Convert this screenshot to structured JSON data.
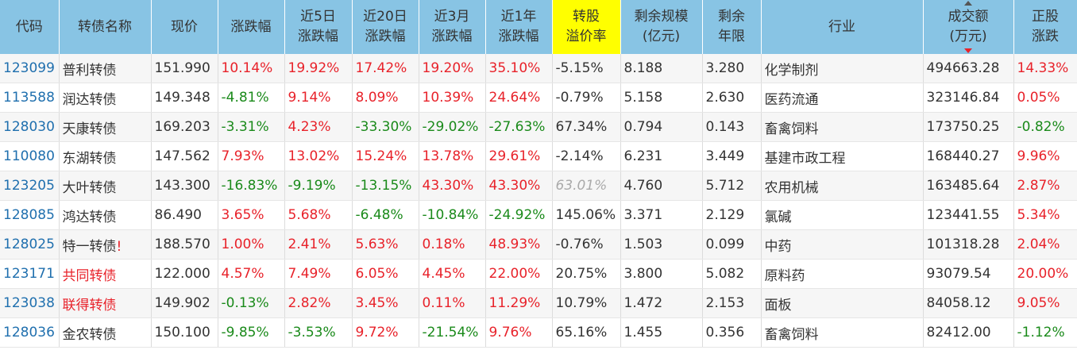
{
  "headers": [
    {
      "l1": "代码"
    },
    {
      "l1": "转债名称"
    },
    {
      "l1": "现价"
    },
    {
      "l1": "涨跌幅"
    },
    {
      "l1": "近5日",
      "l2": "涨跌幅"
    },
    {
      "l1": "近20日",
      "l2": "涨跌幅"
    },
    {
      "l1": "近3月",
      "l2": "涨跌幅"
    },
    {
      "l1": "近1年",
      "l2": "涨跌幅"
    },
    {
      "l1": "转股",
      "l2": "溢价率",
      "highlight": true
    },
    {
      "l1": "剩余规模",
      "l2": "(亿元)"
    },
    {
      "l1": "剩余",
      "l2": "年限"
    },
    {
      "l1": "行业"
    },
    {
      "l1": "成交额",
      "l2": "(万元)",
      "sorted": "desc"
    },
    {
      "l1": "正股",
      "l2": "涨跌"
    }
  ],
  "colors": {
    "header_bg": "#88c4e4",
    "highlight": "#ffff00",
    "up": "#e8222a",
    "down": "#1a8a1a",
    "code": "#1f6fae"
  },
  "rows": [
    {
      "code": "123099",
      "name": "普利转债",
      "price": "151.990",
      "chg": "10.14%",
      "chg5d": "19.92%",
      "chg20d": "17.42%",
      "chg3m": "19.20%",
      "chg1y": "35.10%",
      "premium": "-5.15%",
      "size": "8.188",
      "years": "3.280",
      "industry": "化学制剂",
      "volume": "494663.28",
      "stock_chg": "14.33%"
    },
    {
      "code": "113588",
      "name": "润达转债",
      "price": "149.348",
      "chg": "-4.81%",
      "chg5d": "9.14%",
      "chg20d": "8.09%",
      "chg3m": "10.39%",
      "chg1y": "24.64%",
      "premium": "-0.79%",
      "size": "5.158",
      "years": "2.630",
      "industry": "医药流通",
      "volume": "323146.84",
      "stock_chg": "0.05%"
    },
    {
      "code": "128030",
      "name": "天康转债",
      "price": "169.203",
      "chg": "-3.31%",
      "chg5d": "4.23%",
      "chg20d": "-33.30%",
      "chg3m": "-29.02%",
      "chg1y": "-27.63%",
      "premium": "67.34%",
      "size": "0.794",
      "years": "0.143",
      "industry": "畜禽饲料",
      "volume": "173750.25",
      "stock_chg": "-0.82%"
    },
    {
      "code": "110080",
      "name": "东湖转债",
      "price": "147.562",
      "chg": "7.93%",
      "chg5d": "13.02%",
      "chg20d": "15.24%",
      "chg3m": "13.78%",
      "chg1y": "29.61%",
      "premium": "-2.14%",
      "size": "6.231",
      "years": "3.449",
      "industry": "基建市政工程",
      "volume": "168440.27",
      "stock_chg": "9.96%"
    },
    {
      "code": "123205",
      "name": "大叶转债",
      "price": "143.300",
      "chg": "-16.83%",
      "chg5d": "-9.19%",
      "chg20d": "-13.15%",
      "chg3m": "43.30%",
      "chg1y": "43.30%",
      "premium": "63.01%",
      "premium_style": "gray",
      "size": "4.760",
      "years": "5.712",
      "industry": "农用机械",
      "volume": "163485.64",
      "stock_chg": "2.87%"
    },
    {
      "code": "128085",
      "name": "鸿达转债",
      "price": "86.490",
      "chg": "3.65%",
      "chg5d": "5.68%",
      "chg20d": "-6.48%",
      "chg3m": "-10.84%",
      "chg1y": "-24.92%",
      "premium": "145.06%",
      "size": "3.371",
      "years": "2.129",
      "industry": "氯碱",
      "volume": "123441.55",
      "stock_chg": "5.34%"
    },
    {
      "code": "128025",
      "name": "特一转债",
      "mark": "!",
      "price": "188.570",
      "chg": "1.00%",
      "chg5d": "2.41%",
      "chg20d": "5.63%",
      "chg3m": "0.18%",
      "chg1y": "48.93%",
      "premium": "-0.76%",
      "size": "1.503",
      "years": "0.099",
      "industry": "中药",
      "volume": "101318.28",
      "stock_chg": "2.04%"
    },
    {
      "code": "123171",
      "name": "共同转债",
      "name_red": true,
      "price": "122.000",
      "chg": "4.57%",
      "chg5d": "7.49%",
      "chg20d": "6.05%",
      "chg3m": "4.45%",
      "chg1y": "22.00%",
      "premium": "20.75%",
      "size": "3.800",
      "years": "5.082",
      "industry": "原料药",
      "volume": "93079.54",
      "stock_chg": "20.00%"
    },
    {
      "code": "123038",
      "name": "联得转债",
      "name_red": true,
      "price": "149.902",
      "chg": "-0.13%",
      "chg5d": "2.82%",
      "chg20d": "3.45%",
      "chg3m": "0.11%",
      "chg1y": "11.29%",
      "premium": "10.79%",
      "size": "1.472",
      "years": "2.153",
      "industry": "面板",
      "volume": "84058.12",
      "stock_chg": "9.05%"
    },
    {
      "code": "128036",
      "name": "金农转债",
      "price": "150.100",
      "chg": "-9.85%",
      "chg5d": "-3.53%",
      "chg20d": "9.72%",
      "chg3m": "-21.54%",
      "chg1y": "9.76%",
      "premium": "65.16%",
      "size": "1.455",
      "years": "0.356",
      "industry": "畜禽饲料",
      "volume": "82412.00",
      "stock_chg": "-1.12%"
    }
  ]
}
